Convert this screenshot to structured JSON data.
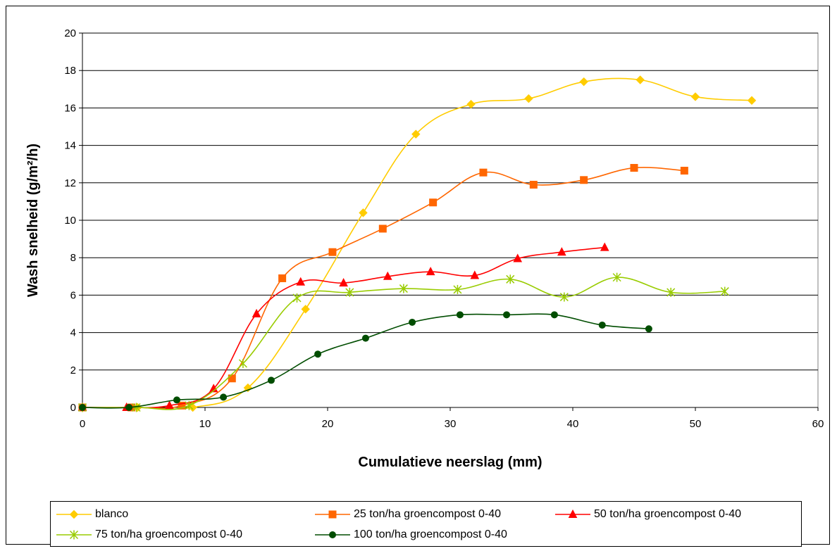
{
  "chart_data": {
    "type": "line",
    "title": "",
    "xlabel": "Cumulatieve neerslag (mm)",
    "ylabel": "Wash snelheid (g/m²/h)",
    "xlim": [
      0,
      60
    ],
    "ylim": [
      0,
      20
    ],
    "xticks": [
      0,
      10,
      20,
      30,
      40,
      50,
      60
    ],
    "yticks": [
      0,
      2,
      4,
      6,
      8,
      10,
      12,
      14,
      16,
      18,
      20
    ],
    "grid": "horizontal",
    "legend_position": "bottom",
    "series": [
      {
        "name": "blanco",
        "color": "#FFCC00",
        "marker": "diamond",
        "x": [
          0,
          4.5,
          9,
          13.5,
          18.2,
          22.9,
          27.2,
          31.7,
          36.4,
          40.9,
          45.5,
          50,
          54.6
        ],
        "y": [
          0,
          0,
          0,
          1.05,
          5.25,
          10.4,
          14.6,
          16.2,
          16.5,
          17.4,
          17.5,
          16.6,
          16.4
        ]
      },
      {
        "name": "25 ton/ha groencompost 0-40",
        "color": "#FF6600",
        "marker": "square",
        "x": [
          0,
          4,
          8.1,
          12.2,
          16.3,
          20.4,
          24.5,
          28.6,
          32.7,
          36.8,
          40.9,
          45,
          49.1
        ],
        "y": [
          0,
          0,
          0.1,
          1.55,
          6.9,
          8.3,
          9.55,
          10.95,
          12.55,
          11.9,
          12.15,
          12.8,
          12.65
        ]
      },
      {
        "name": "50 ton/ha groencompost 0-40",
        "color": "#FF0000",
        "marker": "triangle",
        "x": [
          0,
          3.6,
          7.1,
          10.7,
          14.2,
          17.8,
          21.3,
          24.9,
          28.4,
          32,
          35.5,
          39.1,
          42.6
        ],
        "y": [
          0,
          0,
          0.1,
          1,
          5,
          6.7,
          6.65,
          7,
          7.25,
          7.05,
          7.95,
          8.3,
          8.55
        ]
      },
      {
        "name": "75 ton/ha groencompost 0-40",
        "color": "#99CC00",
        "marker": "star",
        "x": [
          0,
          4.4,
          8.7,
          13.1,
          17.5,
          21.8,
          26.2,
          30.6,
          34.9,
          39.3,
          43.6,
          48,
          52.4
        ],
        "y": [
          0,
          0,
          0.1,
          2.35,
          5.85,
          6.15,
          6.35,
          6.3,
          6.85,
          5.9,
          6.95,
          6.15,
          6.2
        ]
      },
      {
        "name": "100 ton/ha groencompost 0-40",
        "color": "#004D00",
        "marker": "circle",
        "x": [
          0,
          3.8,
          7.7,
          11.5,
          15.4,
          19.2,
          23.1,
          26.9,
          30.8,
          34.6,
          38.5,
          42.4,
          46.2
        ],
        "y": [
          0,
          0,
          0.4,
          0.55,
          1.45,
          2.85,
          3.7,
          4.55,
          4.95,
          4.95,
          4.95,
          4.4,
          4.2
        ]
      }
    ]
  }
}
